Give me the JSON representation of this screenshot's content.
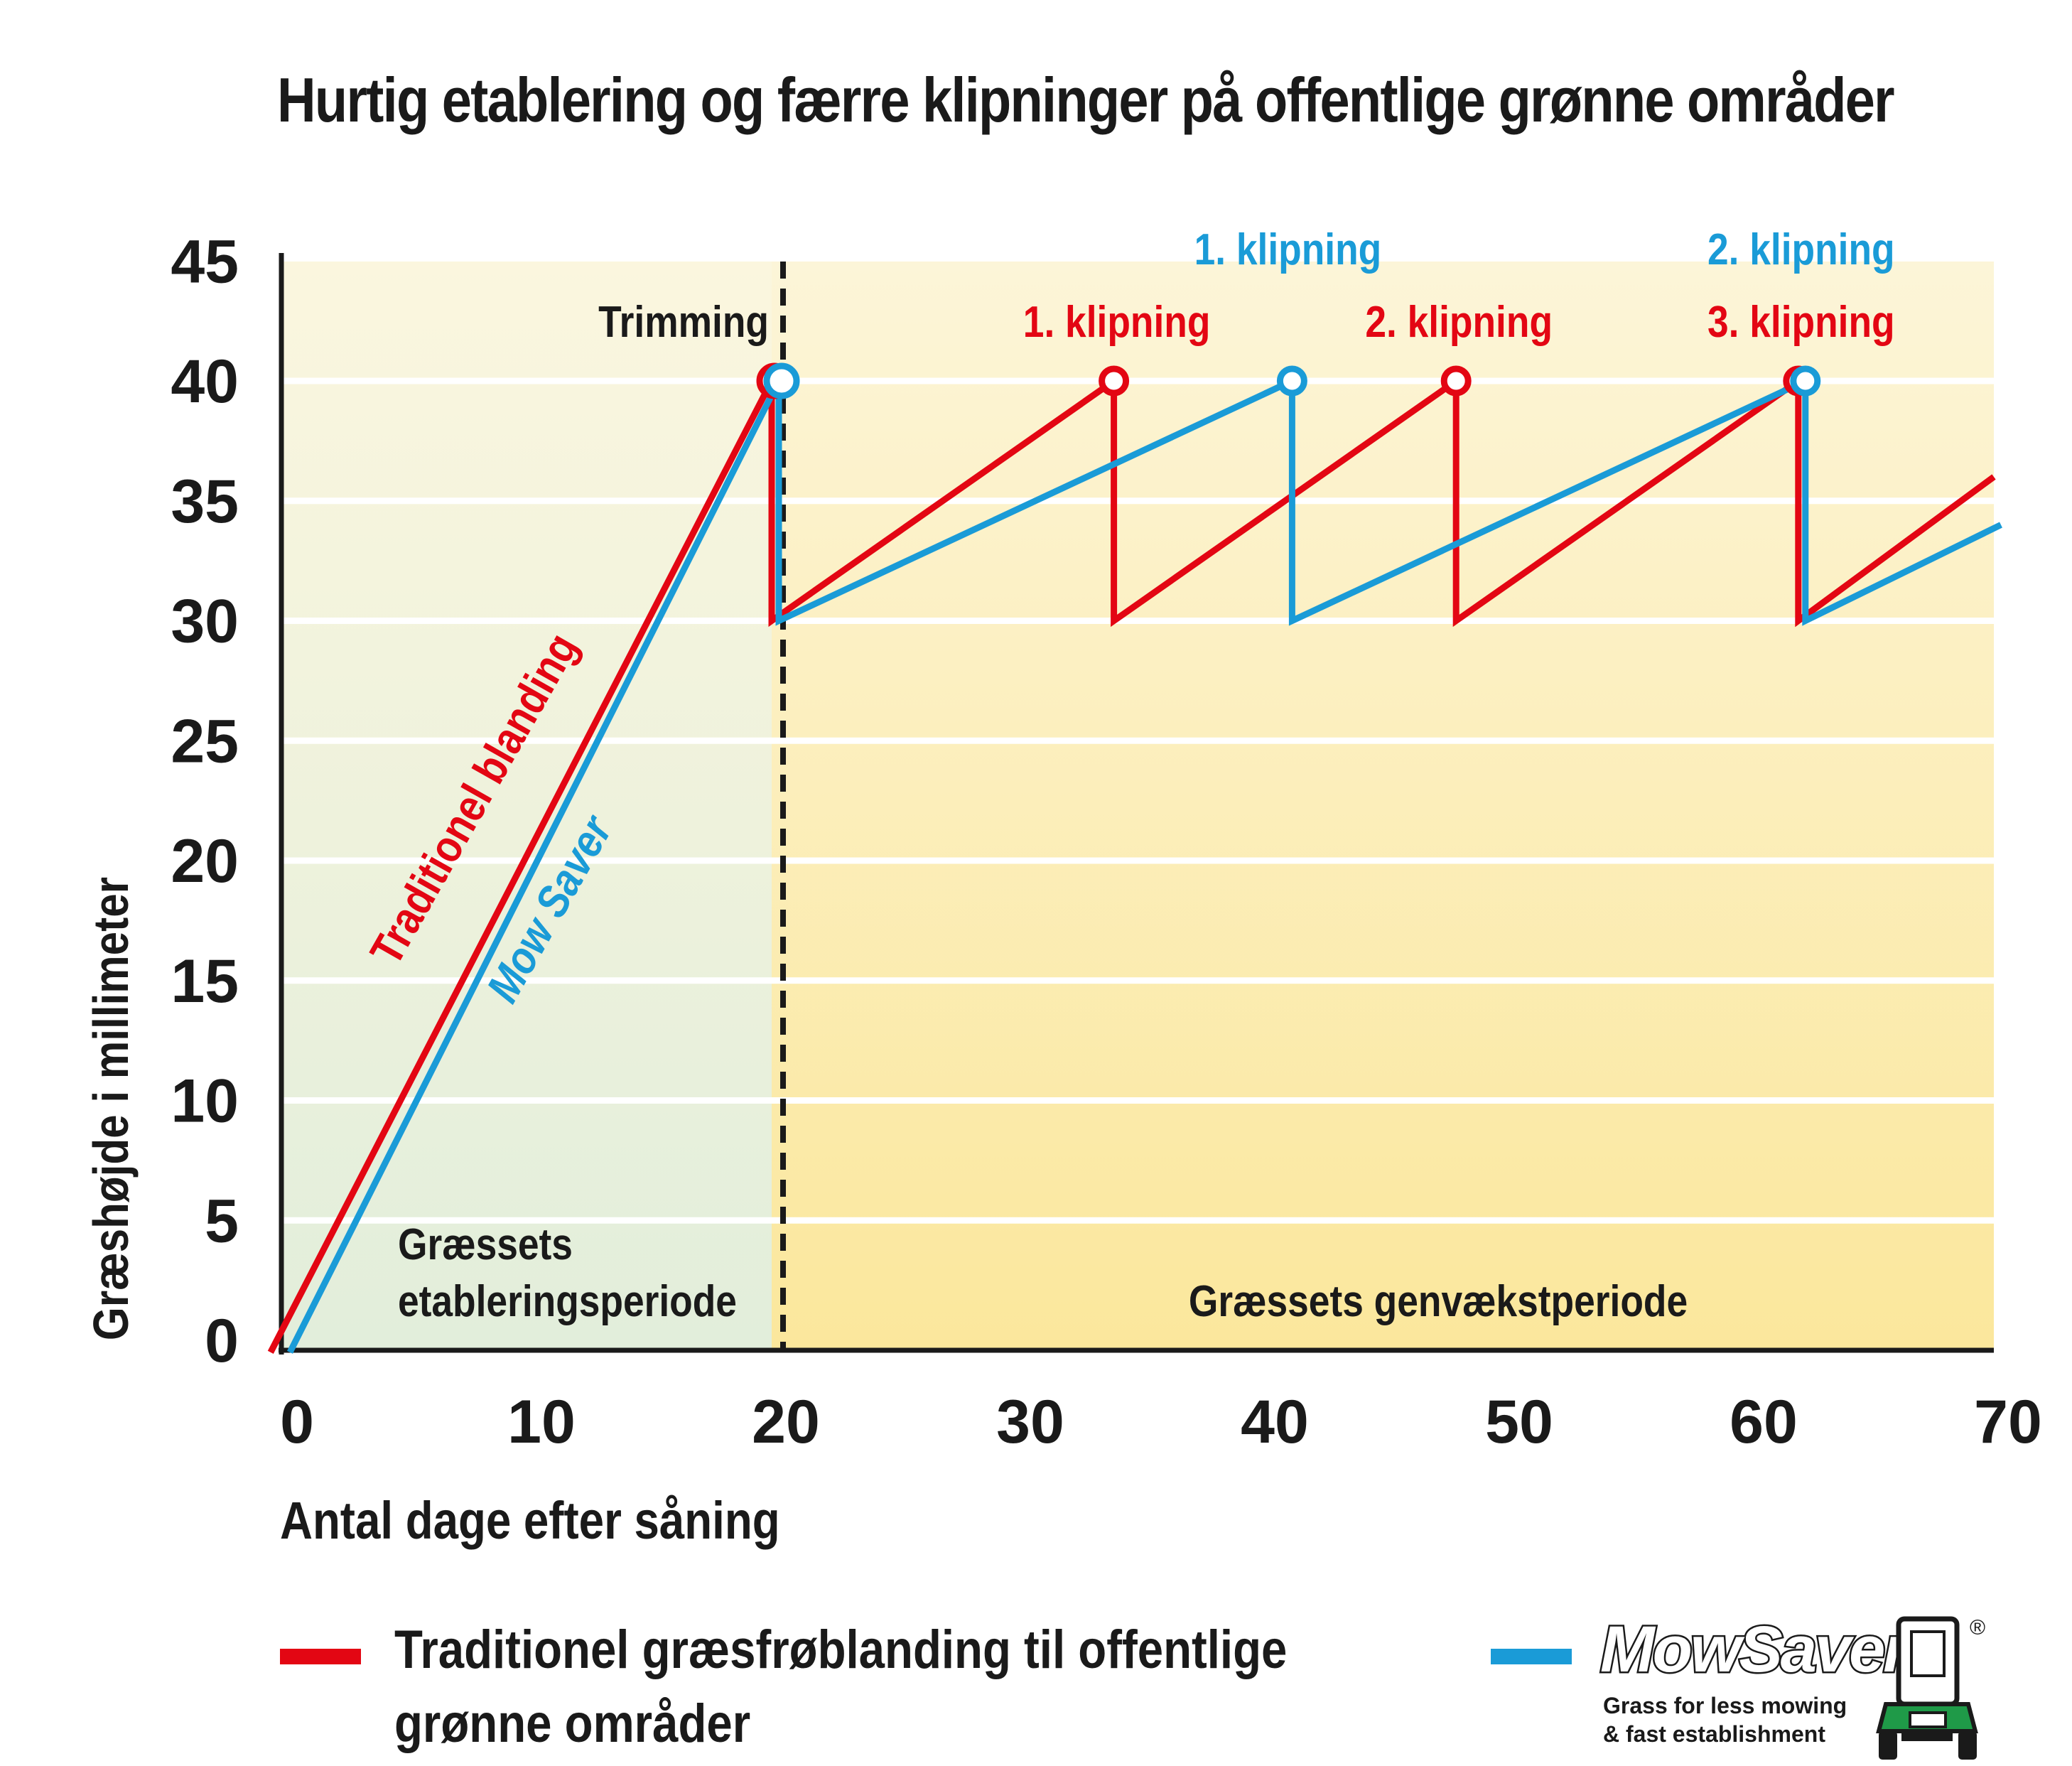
{
  "title": "Hurtig etablering og færre klipninger på offentlige grønne områder",
  "chart_data": {
    "type": "line",
    "xlabel": "Antal dage efter såning",
    "ylabel": "Græshøjde i millimeter",
    "xlim": [
      0,
      70
    ],
    "ylim": [
      0,
      45
    ],
    "x_ticks": [
      "0",
      "10",
      "20",
      "30",
      "40",
      "50",
      "60",
      "70"
    ],
    "y_ticks": [
      "0",
      "5",
      "10",
      "15",
      "20",
      "25",
      "30",
      "35",
      "40",
      "45"
    ],
    "grid": true,
    "series": [
      {
        "name": "Traditionel blanding",
        "color": "#e30613",
        "x": [
          -0.5,
          20,
          20,
          34,
          34,
          48,
          48,
          62,
          62,
          70
        ],
        "y": [
          -0.5,
          40,
          30,
          40,
          30,
          40,
          30,
          40,
          30,
          36
        ]
      },
      {
        "name": "Mow Saver",
        "color": "#1a9bd7",
        "x": [
          0,
          20,
          20,
          41,
          41,
          62,
          62,
          70
        ],
        "y": [
          -0.5,
          40,
          30,
          40,
          30,
          40,
          30,
          34
        ]
      }
    ],
    "markers": [
      {
        "series": "Traditionel blanding",
        "x": 20,
        "y": 40
      },
      {
        "series": "Mow Saver",
        "x": 20,
        "y": 40
      },
      {
        "series": "Traditionel blanding",
        "x": 34,
        "y": 40
      },
      {
        "series": "Mow Saver",
        "x": 41,
        "y": 40
      },
      {
        "series": "Traditionel blanding",
        "x": 48,
        "y": 40
      },
      {
        "series": "Traditionel blanding",
        "x": 62,
        "y": 40
      },
      {
        "series": "Mow Saver",
        "x": 62,
        "y": 40
      }
    ],
    "divider_x": 20,
    "annotations": [
      {
        "text": "Trimming",
        "x": 20,
        "color": "#1a1a1a",
        "row": "lower"
      },
      {
        "text": "1. klipning",
        "x": 34,
        "color": "#e30613",
        "row": "lower"
      },
      {
        "text": "2. klipning",
        "x": 48,
        "color": "#e30613",
        "row": "lower"
      },
      {
        "text": "3. klipning",
        "x": 62,
        "color": "#e30613",
        "row": "lower"
      },
      {
        "text": "1. klipning",
        "x": 41,
        "color": "#1a9bd7",
        "row": "upper"
      },
      {
        "text": "2. klipning",
        "x": 62,
        "color": "#1a9bd7",
        "row": "upper"
      }
    ],
    "period_labels": {
      "establishment": [
        "Græssets",
        "etableringsperiode"
      ],
      "regrowth": "Græssets genvækstperiode"
    },
    "line_labels": {
      "red": "Traditionel blanding",
      "blue": "Mow Saver"
    }
  },
  "legend": {
    "red_label_line1": "Traditionel græsfrøblanding til offentlige",
    "red_label_line2": "grønne områder",
    "red_color": "#e30613",
    "blue_color": "#1a9bd7"
  },
  "logo": {
    "brand": "MowSaver",
    "registered": "®",
    "tagline1": "Grass for less mowing",
    "tagline2": "& fast establishment"
  }
}
